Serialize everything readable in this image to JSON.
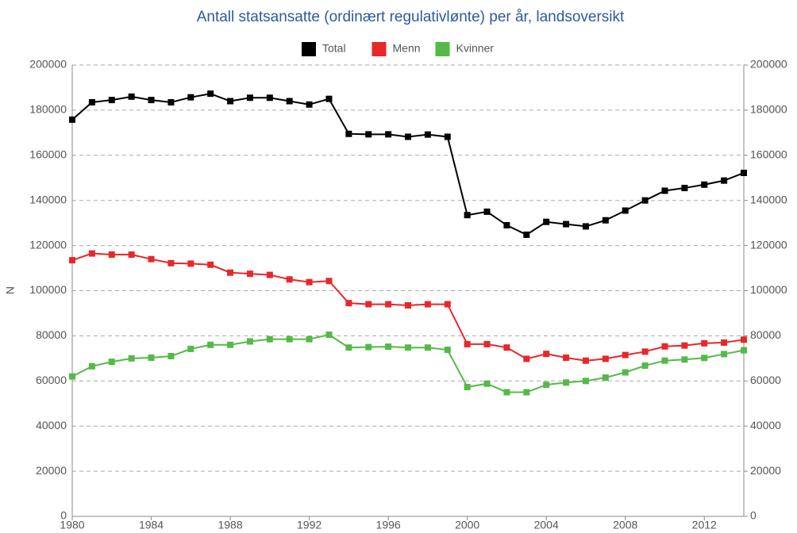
{
  "chart_data": {
    "type": "line",
    "title": "Antall statsansatte (ordinært regulativlønte) per år, landsoversikt",
    "y_label": "N",
    "x": [
      1980,
      1981,
      1982,
      1983,
      1984,
      1985,
      1986,
      1987,
      1988,
      1989,
      1990,
      1991,
      1992,
      1993,
      1994,
      1995,
      1996,
      1997,
      1998,
      1999,
      2000,
      2001,
      2002,
      2003,
      2004,
      2005,
      2006,
      2007,
      2008,
      2009,
      2010,
      2011,
      2012,
      2013,
      2014
    ],
    "series": [
      {
        "name": "Total",
        "color": "#000000",
        "values": [
          175800,
          183500,
          184500,
          186000,
          184500,
          183500,
          185700,
          187300,
          184000,
          185500,
          185500,
          184000,
          182500,
          185000,
          169500,
          169300,
          169300,
          168200,
          169200,
          168200,
          133500,
          135000,
          129000,
          124800,
          130500,
          129500,
          128500,
          131200,
          135500,
          140000,
          144300,
          145500,
          147000,
          148800,
          152200
        ]
      },
      {
        "name": "Menn",
        "color": "#e8272a",
        "values": [
          113500,
          116500,
          116000,
          116000,
          114000,
          112200,
          112000,
          111500,
          108000,
          107500,
          107000,
          105000,
          103800,
          104300,
          94500,
          94000,
          94000,
          93500,
          94000,
          94000,
          76300,
          76300,
          74800,
          69800,
          72000,
          70300,
          69000,
          69800,
          71500,
          73000,
          75300,
          75700,
          76700,
          77000,
          78300
        ]
      },
      {
        "name": "Kvinner",
        "color": "#55b947",
        "values": [
          62000,
          66500,
          68500,
          70000,
          70300,
          71000,
          74200,
          76000,
          76000,
          77500,
          78500,
          78500,
          78500,
          80500,
          74800,
          75000,
          75200,
          74800,
          74800,
          73800,
          57300,
          58800,
          55000,
          55000,
          58300,
          59300,
          60000,
          61500,
          63800,
          66800,
          69000,
          69500,
          70200,
          71900,
          73600
        ]
      }
    ],
    "xlim": [
      1980,
      2014
    ],
    "xticks": [
      1980,
      1984,
      1988,
      1992,
      1996,
      2000,
      2004,
      2008,
      2012
    ],
    "ylim": [
      0,
      200000
    ],
    "yticks": [
      0,
      20000,
      40000,
      60000,
      80000,
      100000,
      120000,
      140000,
      160000,
      180000,
      200000
    ],
    "y2lim": [
      0,
      200000
    ],
    "y2ticks": [
      0,
      20000,
      40000,
      60000,
      80000,
      100000,
      120000,
      140000,
      160000,
      180000,
      200000
    ],
    "grid": true,
    "legend": "top"
  }
}
